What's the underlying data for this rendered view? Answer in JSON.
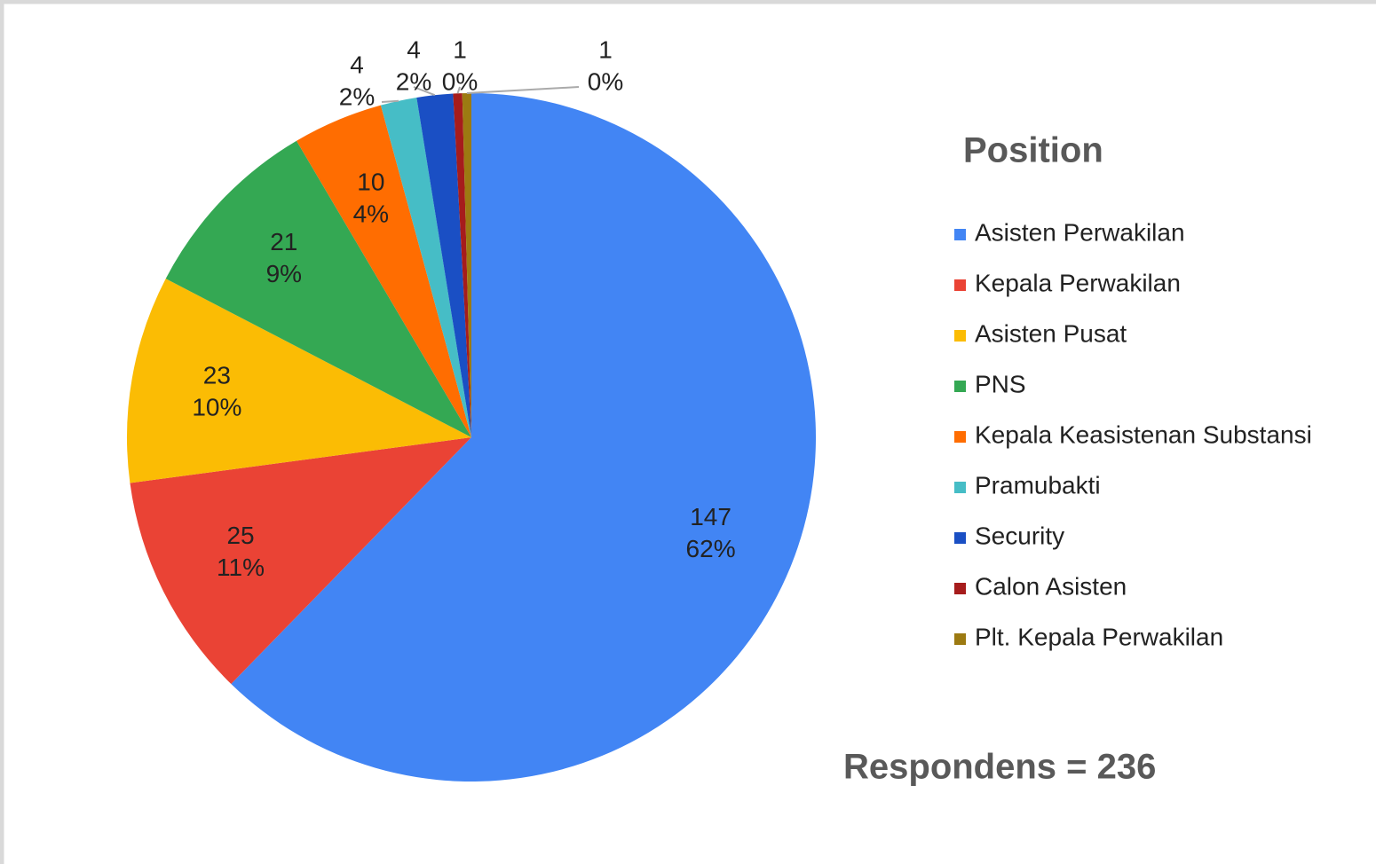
{
  "chart_data": {
    "type": "pie",
    "title": "Position",
    "annotation": "Respondens = 236",
    "categories": [
      "Asisten Perwakilan",
      "Kepala Perwakilan",
      "Asisten Pusat",
      "PNS",
      "Kepala Keasistenan Substansi",
      "Pramubakti",
      "Security",
      "Calon Asisten",
      "Plt. Kepala Perwakilan"
    ],
    "values": [
      147,
      25,
      23,
      21,
      10,
      4,
      4,
      1,
      1
    ],
    "percent_labels": [
      "62%",
      "11%",
      "10%",
      "9%",
      "4%",
      "2%",
      "2%",
      "0%",
      "0%"
    ],
    "colors": [
      "#4285f4",
      "#ea4335",
      "#fbbc04",
      "#34a853",
      "#ff6d01",
      "#46bdc6",
      "#1a4fc4",
      "#a61c1c",
      "#9c7a12"
    ],
    "legend": "right"
  }
}
